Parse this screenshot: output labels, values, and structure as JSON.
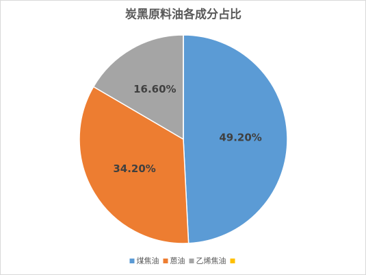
{
  "chart_data": {
    "type": "pie",
    "title": "炭黑原料油各成分占比",
    "categories": [
      "煤焦油",
      "蒽油",
      "乙烯焦油",
      null
    ],
    "values": [
      49.2,
      34.2,
      16.6,
      0
    ],
    "value_labels": [
      "49.20%",
      "34.20%",
      "16.60%",
      null
    ],
    "colors": [
      "#5b9bd5",
      "#ed7d31",
      "#a5a5a5",
      "#ffc000"
    ],
    "legend": "bottom"
  }
}
